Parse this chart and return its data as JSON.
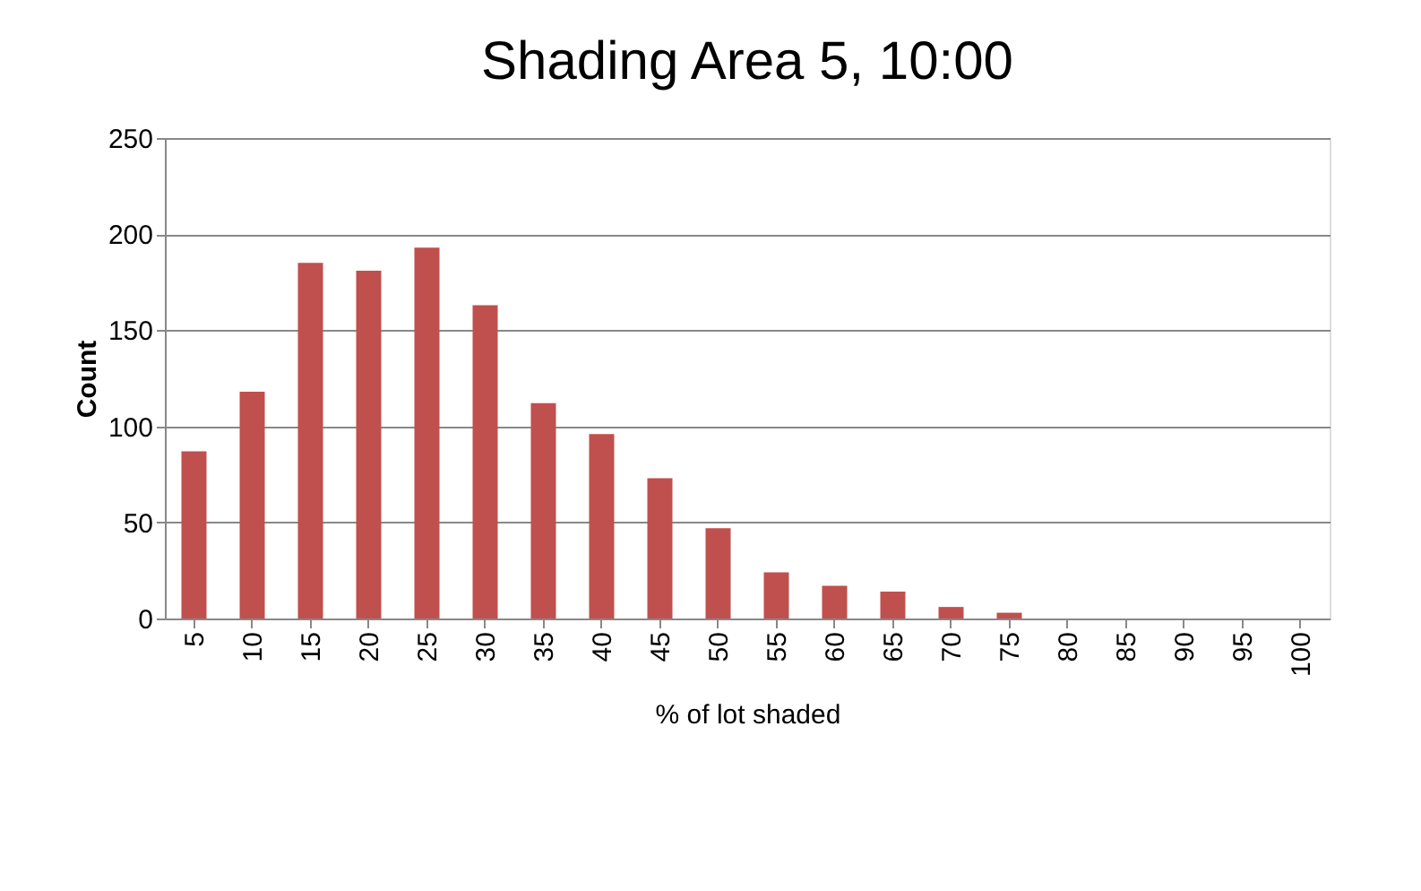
{
  "chart_data": {
    "type": "bar",
    "title": "Shading Area 5, 10:00",
    "xlabel": "% of lot shaded",
    "ylabel": "Count",
    "categories": [
      "5",
      "10",
      "15",
      "20",
      "25",
      "30",
      "35",
      "40",
      "45",
      "50",
      "55",
      "60",
      "65",
      "70",
      "75",
      "80",
      "85",
      "90",
      "95",
      "100"
    ],
    "series": [
      {
        "color": "#c0504d",
        "values": [
          87,
          118,
          185,
          181,
          193,
          163,
          112,
          96,
          73,
          47,
          24,
          17,
          14,
          6,
          3,
          0,
          0,
          0,
          0,
          0
        ]
      }
    ],
    "ylim": [
      0,
      250
    ],
    "yticks": [
      0,
      50,
      100,
      150,
      200,
      250
    ],
    "grid": "y",
    "legend": false
  }
}
